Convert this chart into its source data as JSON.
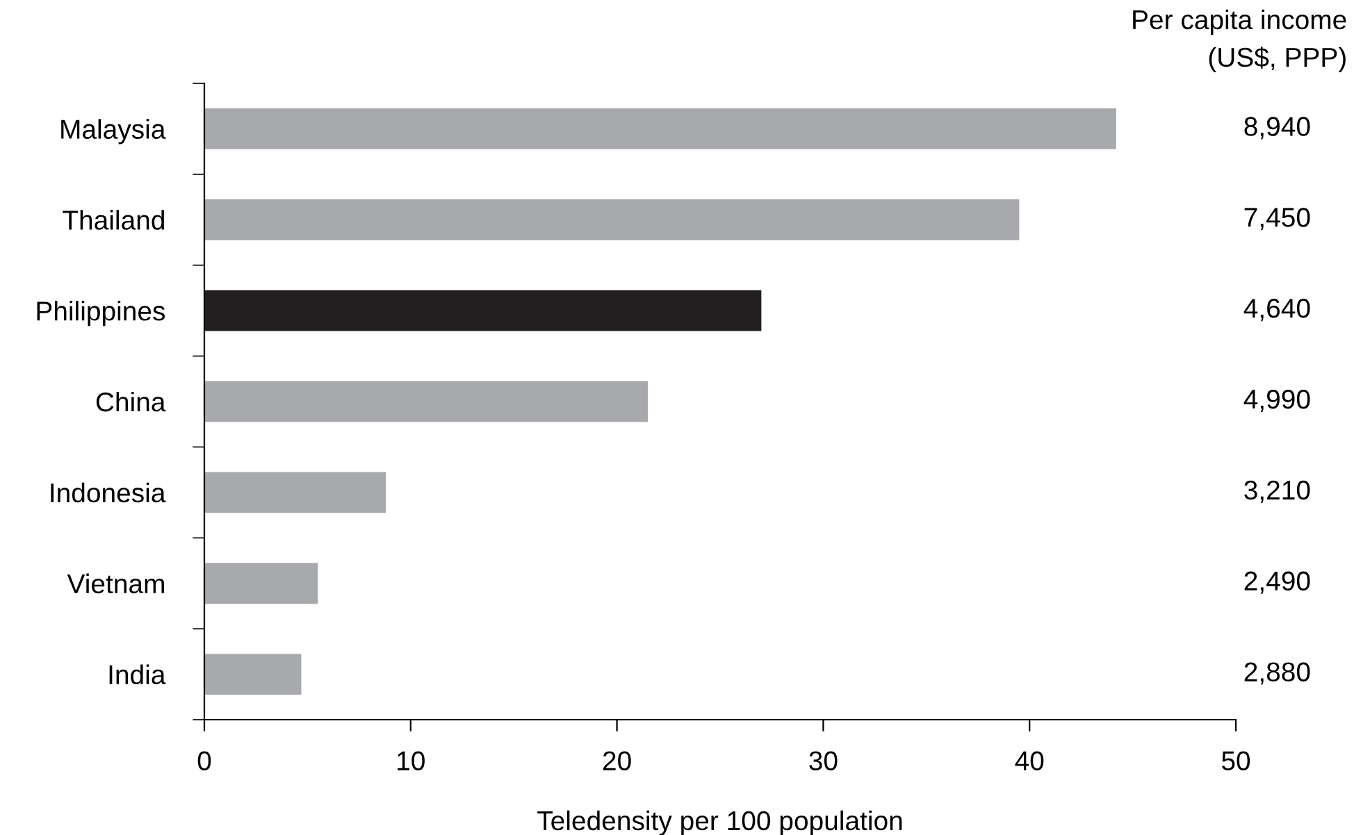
{
  "chart_data": {
    "type": "bar",
    "orientation": "horizontal",
    "categories": [
      "Malaysia",
      "Thailand",
      "Philippines",
      "China",
      "Indonesia",
      "Vietnam",
      "India"
    ],
    "values": [
      44.2,
      39.5,
      27.0,
      21.5,
      8.8,
      5.5,
      4.7
    ],
    "colors": [
      "#a7a9ac",
      "#a7a9ac",
      "#231f20",
      "#a7a9ac",
      "#a7a9ac",
      "#a7a9ac",
      "#a7a9ac"
    ],
    "xlabel": "Teledensity per 100 population",
    "xlim": [
      0,
      50
    ],
    "xticks": [
      0,
      10,
      20,
      30,
      40,
      50
    ],
    "grid": false,
    "legend": false,
    "annotations": [
      "Per capita income\n(US$, PPP)",
      "8,940",
      "7,450",
      "4,640",
      "4,990",
      "3,210",
      "2,490",
      "2,880"
    ]
  }
}
